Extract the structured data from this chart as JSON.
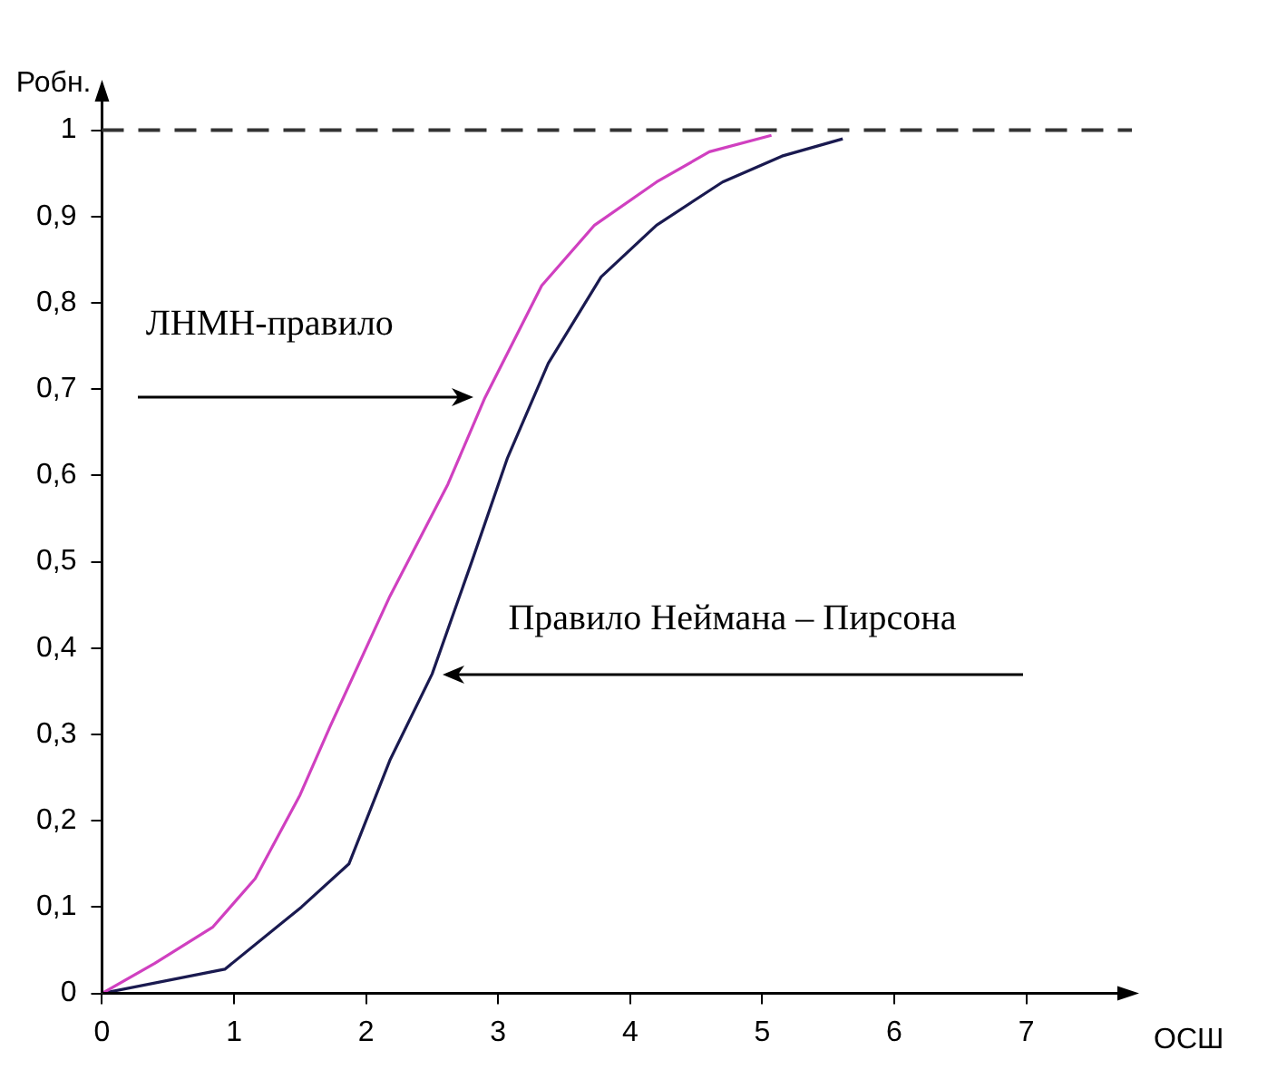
{
  "chart_data": {
    "type": "line",
    "xlabel": "ОСШ",
    "ylabel": "Робн.",
    "xlim": [
      0,
      7.8
    ],
    "xticks": [
      0,
      1,
      2,
      3,
      4,
      5,
      6,
      7
    ],
    "ylim": [
      0,
      1.05
    ],
    "yticks": [
      0,
      {
        "value": 0.1,
        "label": "0,1"
      },
      {
        "value": 0.2,
        "label": "0,2"
      },
      {
        "value": 0.3,
        "label": "0,3"
      },
      {
        "value": 0.4,
        "label": "0,4"
      },
      {
        "value": 0.5,
        "label": "0,5"
      },
      {
        "value": 0.6,
        "label": "0,6"
      },
      {
        "value": 0.7,
        "label": "0,7"
      },
      {
        "value": 0.8,
        "label": "0,8"
      },
      {
        "value": 0.9,
        "label": "0,9"
      },
      1
    ],
    "grid": false,
    "legend": false,
    "marker": "none",
    "line_style": "solid",
    "ref_lines": [
      {
        "axis": "y",
        "value": 1,
        "color": "#333333",
        "line_style": "dashed"
      }
    ],
    "series": [
      {
        "name": "ЛНМН-правило",
        "color": "#d040c0",
        "x": [
          0,
          0.4,
          0.84,
          1.16,
          1.5,
          1.73,
          2.18,
          2.62,
          2.9,
          3.33,
          3.73,
          4.2,
          4.6,
          5.07
        ],
        "values": [
          0,
          0.035,
          0.077,
          0.133,
          0.23,
          0.31,
          0.46,
          0.59,
          0.69,
          0.82,
          0.89,
          0.94,
          0.975,
          0.994
        ]
      },
      {
        "name": "Правило Неймана – Пирсона",
        "color": "#1a1a50",
        "x": [
          0,
          0.93,
          1.51,
          1.87,
          2.18,
          2.5,
          2.8,
          3.07,
          3.38,
          3.78,
          4.2,
          4.7,
          5.15,
          5.61
        ],
        "values": [
          0,
          0.028,
          0.1,
          0.15,
          0.27,
          0.37,
          0.5,
          0.62,
          0.73,
          0.83,
          0.89,
          0.94,
          0.97,
          0.99
        ]
      }
    ]
  }
}
